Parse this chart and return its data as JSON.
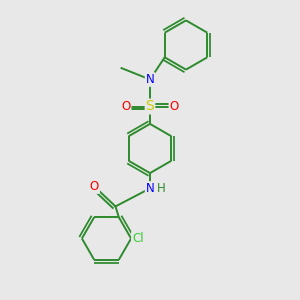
{
  "bg_color": "#e8e8e8",
  "bond_color": "#2d8a2d",
  "atom_colors": {
    "N": "#0000ff",
    "O": "#ff0000",
    "S": "#cccc00",
    "Cl": "#33cc33",
    "C": "#2d8a2d"
  },
  "font_size": 8.5,
  "bond_width": 1.4,
  "figsize": [
    3.0,
    3.0
  ],
  "dpi": 100,
  "xlim": [
    0,
    10
  ],
  "ylim": [
    0,
    10
  ]
}
